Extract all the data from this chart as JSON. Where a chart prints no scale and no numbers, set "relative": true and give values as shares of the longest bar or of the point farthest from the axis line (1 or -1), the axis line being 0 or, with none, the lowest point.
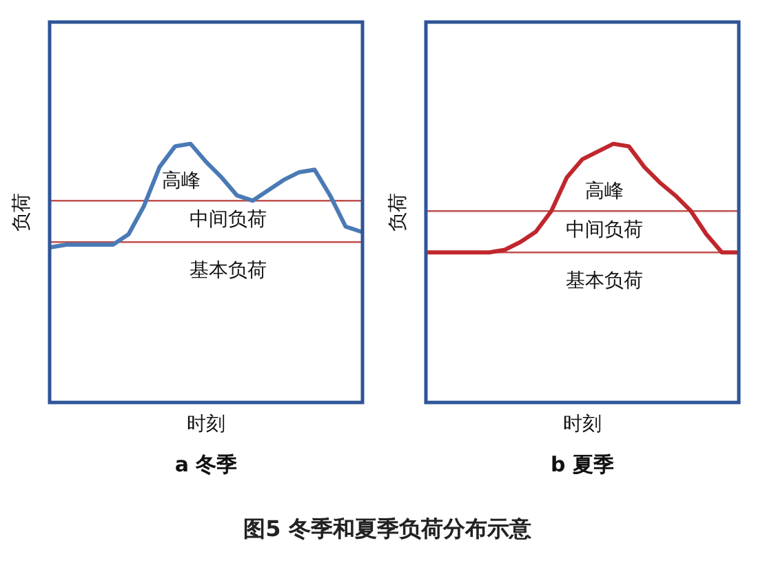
{
  "chart_data": [
    {
      "type": "line",
      "relative": true,
      "title": "a  冬季",
      "xlabel": "时刻",
      "ylabel": "负荷",
      "categories": [
        null,
        null,
        null,
        null,
        null,
        null,
        null,
        null,
        null,
        null,
        null,
        null,
        null,
        null,
        null,
        null,
        null,
        null,
        null,
        null,
        null
      ],
      "series": [
        {
          "color": "#4a7ab5",
          "values": [
            0.6,
            0.61,
            0.61,
            0.61,
            0.61,
            0.65,
            0.76,
            0.91,
            0.99,
            1,
            0.93,
            0.87,
            0.8,
            0.78,
            0.82,
            0.86,
            0.89,
            0.9,
            0.8,
            0.68,
            0.66
          ]
        }
      ],
      "ref_lines": [
        {
          "axis": "y",
          "value": 0.62,
          "color": "#c0504d"
        },
        {
          "axis": "y",
          "value": 0.78,
          "color": "#c0504d"
        }
      ],
      "annotations": [
        "高峰",
        "中间负荷",
        "基本负荷"
      ]
    },
    {
      "type": "line",
      "relative": true,
      "title": "b  夏季",
      "xlabel": "时刻",
      "ylabel": "负荷",
      "categories": [
        null,
        null,
        null,
        null,
        null,
        null,
        null,
        null,
        null,
        null,
        null,
        null,
        null,
        null,
        null,
        null,
        null,
        null,
        null,
        null,
        null
      ],
      "series": [
        {
          "color": "#c0272d",
          "values": [
            0.58,
            0.58,
            0.58,
            0.58,
            0.58,
            0.59,
            0.62,
            0.66,
            0.74,
            0.87,
            0.94,
            0.97,
            1,
            0.99,
            0.91,
            0.85,
            0.8,
            0.74,
            0.65,
            0.58,
            0.58
          ]
        }
      ],
      "ref_lines": [
        {
          "axis": "y",
          "value": 0.58,
          "color": "#c0504d"
        },
        {
          "axis": "y",
          "value": 0.74,
          "color": "#c0504d"
        }
      ],
      "annotations": [
        "高峰",
        "中间负荷",
        "基本负荷",
        "图5   冬季和夏季负荷分布示意"
      ]
    }
  ]
}
